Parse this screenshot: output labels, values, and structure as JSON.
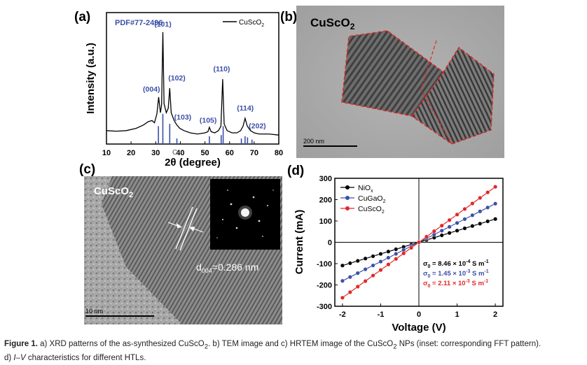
{
  "figure": {
    "panel_labels": {
      "a": "(a)",
      "b": "(b)",
      "c": "(c)",
      "d": "(d)"
    },
    "caption": {
      "label": "Figure 1.",
      "text_1": "a) XRD patterns of the as-synthesized CuScO",
      "sub_1": "2",
      "text_2": ". b) TEM image and c) HRTEM image of the CuScO",
      "sub_2": "2",
      "text_3": " NPs (inset: corresponding FFT pattern).",
      "text_4": "d) ",
      "italic_4": "I–V",
      "text_5": " characteristics for different HTLs."
    }
  },
  "panel_b": {
    "title": "CuScO",
    "title_sub": "2",
    "scale_bar": "200 nm"
  },
  "panel_c": {
    "title": "CuScO",
    "title_sub": "2",
    "dspacing_prefix": "d",
    "dspacing_sub": "004",
    "dspacing_value": "=0.286 nm",
    "scale_bar": "10 nm"
  },
  "chart_data": [
    {
      "type": "line",
      "panel": "a",
      "legend_text": "PDF#77-2496",
      "legend_entry": "CuScO",
      "legend_entry_sub": "2",
      "xlabel": "2θ (degree)",
      "ylabel": "Intensity (a.u.)",
      "xlim": [
        10,
        80
      ],
      "x_ticks": [
        10,
        20,
        30,
        40,
        50,
        60,
        70,
        80
      ],
      "stray_label": "C",
      "curve": [
        [
          10,
          0.12
        ],
        [
          14,
          0.115
        ],
        [
          18,
          0.12
        ],
        [
          22,
          0.14
        ],
        [
          25,
          0.17
        ],
        [
          27,
          0.2
        ],
        [
          28.5,
          0.21
        ],
        [
          29.5,
          0.19
        ],
        [
          30.5,
          0.27
        ],
        [
          31.2,
          0.42
        ],
        [
          31.9,
          0.28
        ],
        [
          32.4,
          0.35
        ],
        [
          32.9,
          1.0
        ],
        [
          33.4,
          0.36
        ],
        [
          34.3,
          0.28
        ],
        [
          35.1,
          0.32
        ],
        [
          35.7,
          0.5
        ],
        [
          36.3,
          0.28
        ],
        [
          37.5,
          0.21
        ],
        [
          38.6,
          0.17
        ],
        [
          39.8,
          0.14
        ],
        [
          41.5,
          0.12
        ],
        [
          44,
          0.1
        ],
        [
          47,
          0.09
        ],
        [
          50,
          0.1
        ],
        [
          51.2,
          0.11
        ],
        [
          51.8,
          0.15
        ],
        [
          52.5,
          0.11
        ],
        [
          54,
          0.1
        ],
        [
          55.5,
          0.12
        ],
        [
          56.5,
          0.16
        ],
        [
          57.2,
          0.58
        ],
        [
          57.8,
          0.18
        ],
        [
          59,
          0.12
        ],
        [
          61,
          0.1
        ],
        [
          63,
          0.1
        ],
        [
          64.5,
          0.12
        ],
        [
          65.5,
          0.16
        ],
        [
          66.3,
          0.23
        ],
        [
          67.2,
          0.16
        ],
        [
          68.5,
          0.12
        ],
        [
          70,
          0.1
        ],
        [
          72,
          0.09
        ],
        [
          76,
          0.09
        ],
        [
          80,
          0.08
        ]
      ],
      "reference_lines": [
        [
          31.1,
          0.16
        ],
        [
          32.9,
          0.27
        ],
        [
          35.7,
          0.18
        ],
        [
          38.6,
          0.05
        ],
        [
          51.8,
          0.07
        ],
        [
          56.6,
          0.08
        ],
        [
          57.4,
          0.16
        ],
        [
          64.8,
          0.05
        ],
        [
          66.3,
          0.07
        ],
        [
          67.3,
          0.06
        ],
        [
          69.1,
          0.04
        ]
      ],
      "annotations": [
        {
          "text": "(101)",
          "x": 32.9,
          "y": 1.05
        },
        {
          "text": "(004)",
          "x": 28.3,
          "y": 0.47
        },
        {
          "text": "(102)",
          "x": 38.6,
          "y": 0.57
        },
        {
          "text": "(103)",
          "x": 41.0,
          "y": 0.22
        },
        {
          "text": "(110)",
          "x": 56.8,
          "y": 0.65
        },
        {
          "text": "(105)",
          "x": 51.3,
          "y": 0.19
        },
        {
          "text": "(114)",
          "x": 66.4,
          "y": 0.3
        },
        {
          "text": "(202)",
          "x": 71.3,
          "y": 0.14
        }
      ]
    },
    {
      "type": "line",
      "panel": "d",
      "xlabel": "Voltage (V)",
      "ylabel": "Current (mA)",
      "xlim": [
        -2.2,
        2.2
      ],
      "ylim": [
        -300,
        300
      ],
      "x_ticks": [
        -2,
        -1,
        0,
        1,
        2
      ],
      "y_ticks": [
        -300,
        -200,
        -100,
        0,
        100,
        200,
        300
      ],
      "legend_placement": "top-left",
      "x": [
        -2,
        -1.8,
        -1.6,
        -1.4,
        -1.2,
        -1,
        -0.8,
        -0.6,
        -0.4,
        -0.2,
        0,
        0.2,
        0.4,
        0.6,
        0.8,
        1,
        1.2,
        1.4,
        1.6,
        1.8,
        2
      ],
      "series": [
        {
          "name": "NiO",
          "name_sub": "x",
          "color": "#000000",
          "slope": 54.5,
          "sigma_label": "σ",
          "sigma_sub": "0",
          "sigma_text": " = 8.46 × 10",
          "sigma_exp": "-4",
          "sigma_unit": " S m",
          "sigma_unit_exp": "-1"
        },
        {
          "name": "CuGaO",
          "name_sub": "2",
          "color": "#3b4fa8",
          "slope": 90.5,
          "sigma_label": "σ",
          "sigma_sub": "0",
          "sigma_text": " = 1.45 × 10",
          "sigma_exp": "-3",
          "sigma_unit": " S m",
          "sigma_unit_exp": "-1"
        },
        {
          "name": "CuScO",
          "name_sub": "2",
          "color": "#e02828",
          "slope": 130.0,
          "sigma_label": "σ",
          "sigma_sub": "0",
          "sigma_text": " = 2.11 × 10",
          "sigma_exp": "-3",
          "sigma_unit": " S m",
          "sigma_unit_exp": "-1"
        }
      ]
    }
  ]
}
